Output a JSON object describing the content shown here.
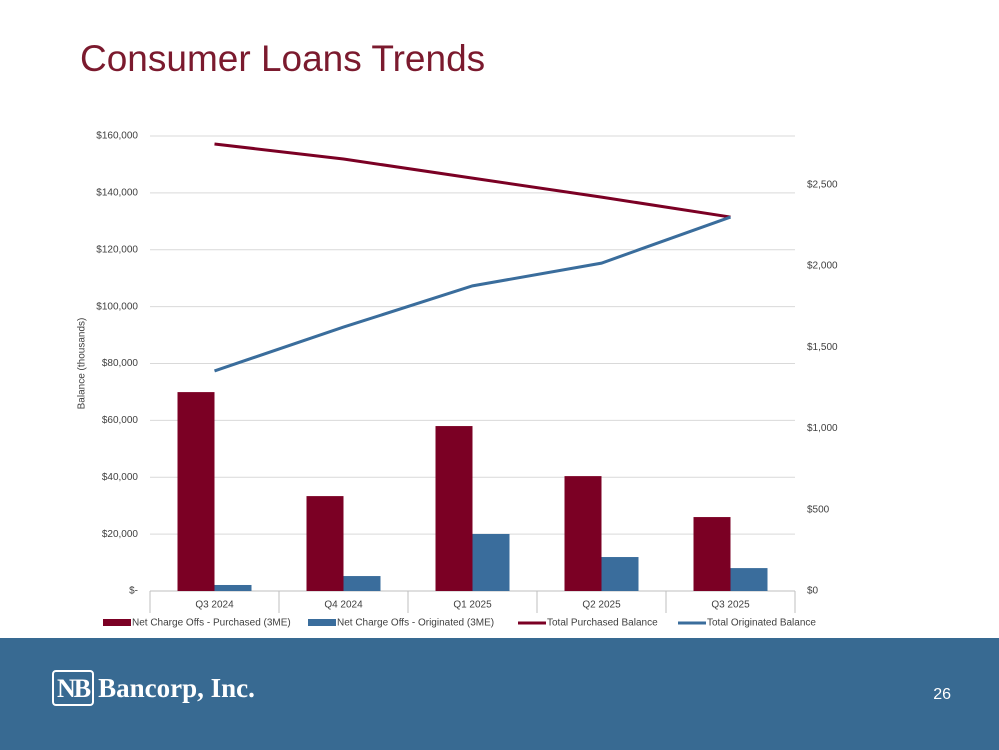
{
  "title": "Consumer Loans Trends",
  "chart_data": {
    "type": "combo",
    "y_label": "Balance (thousands)",
    "categories": [
      "Q3 2024",
      "Q4 2024",
      "Q1 2025",
      "Q2 2025",
      "Q3 2025"
    ],
    "series": [
      {
        "name": "Net Charge Offs - Purchased (3ME)",
        "type": "bar",
        "axis": "y2",
        "color": "#7b0024",
        "values": [
          1224,
          584,
          1015,
          707,
          455
        ]
      },
      {
        "name": "Net Charge Offs - Originated (3ME)",
        "type": "bar",
        "axis": "y2",
        "color": "#3a6d9c",
        "values": [
          37,
          92,
          351,
          209,
          141
        ]
      },
      {
        "name": "Total Purchased Balance",
        "type": "line",
        "color": "#7b0024",
        "values": [
          157200,
          151900,
          145200,
          138500,
          131500
        ]
      },
      {
        "name": "Total Originated Balance",
        "type": "line",
        "color": "#3a6d9c",
        "values": [
          77400,
          92800,
          107300,
          115300,
          131500
        ]
      }
    ],
    "ylim": [
      0,
      160000
    ],
    "yticks": [
      {
        "value": 0,
        "label": "$-"
      },
      {
        "value": 20000,
        "label": "$20,000"
      },
      {
        "value": 40000,
        "label": "$40,000"
      },
      {
        "value": 60000,
        "label": "$60,000"
      },
      {
        "value": 80000,
        "label": "$80,000"
      },
      {
        "value": 100000,
        "label": "$100,000"
      },
      {
        "value": 120000,
        "label": "$120,000"
      },
      {
        "value": 140000,
        "label": "$140,000"
      },
      {
        "value": 160000,
        "label": "$160,000"
      }
    ],
    "y2lim": [
      0,
      2800
    ],
    "y2ticks": [
      {
        "value": 0,
        "label": "$0"
      },
      {
        "value": 500,
        "label": "$500"
      },
      {
        "value": 1000,
        "label": "$1,000"
      },
      {
        "value": 1500,
        "label": "$1,500"
      },
      {
        "value": 2000,
        "label": "$2,000"
      },
      {
        "value": 2500,
        "label": "$2,500"
      }
    ],
    "grid": true,
    "legend": "bottom"
  },
  "footer": {
    "logo_mark": "NB",
    "company": "Bancorp, Inc.",
    "page_number": "26"
  }
}
